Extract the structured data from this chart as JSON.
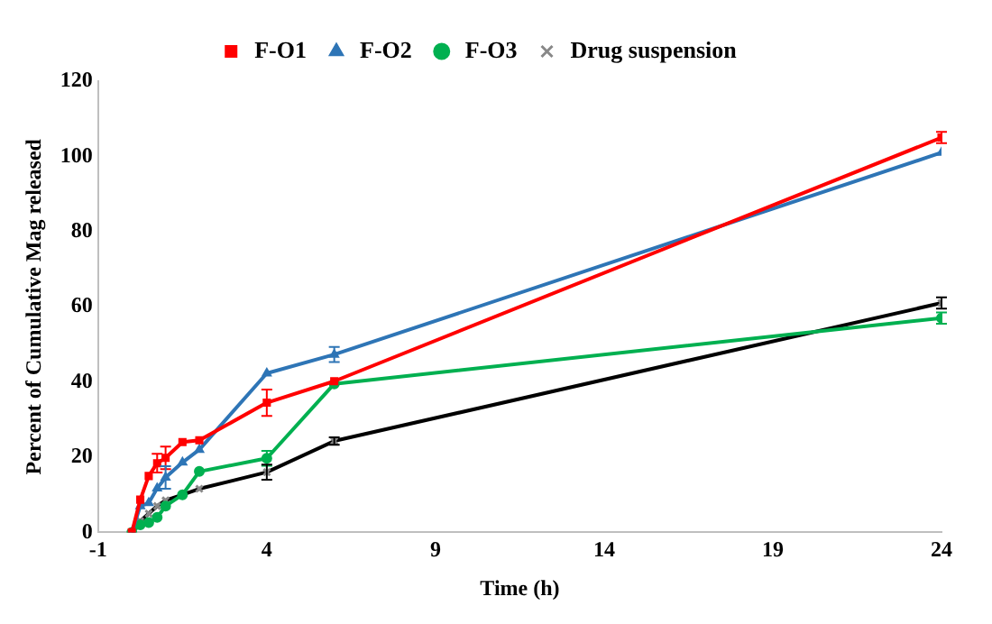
{
  "chart_data": {
    "type": "line",
    "xlabel": "Time (h)",
    "ylabel": "Percent of Cumulative Mag released",
    "x": [
      0,
      0.25,
      0.5,
      0.75,
      1,
      1.5,
      2,
      4,
      6,
      24
    ],
    "xlim": [
      -1,
      24
    ],
    "xticks": [
      -1,
      4,
      9,
      14,
      19,
      24
    ],
    "ylim": [
      0,
      120
    ],
    "yticks": [
      0,
      20,
      40,
      60,
      80,
      100,
      120
    ],
    "grid": false,
    "legend": "top",
    "line_style": "solid",
    "series": [
      {
        "name": "F-O1",
        "color": "#ff0000",
        "marker": "square",
        "values": [
          0,
          8.7,
          15,
          18.4,
          19.8,
          24,
          24.5,
          34.5,
          40.2,
          105
        ],
        "errors": [
          null,
          null,
          null,
          2.5,
          3,
          null,
          null,
          3.5,
          null,
          1.5
        ]
      },
      {
        "name": "F-O2",
        "color": "#2e75b6",
        "marker": "triangle",
        "values": [
          0,
          7,
          7.8,
          11.7,
          14.6,
          18.6,
          22,
          42.3,
          47.3,
          101
        ],
        "errors": [
          null,
          null,
          null,
          null,
          3,
          null,
          null,
          null,
          2,
          null
        ]
      },
      {
        "name": "F-O3",
        "color": "#00b050",
        "marker": "circle",
        "values": [
          0,
          2,
          2.6,
          4,
          7,
          10,
          16.2,
          19.7,
          39.5,
          57
        ],
        "errors": [
          null,
          null,
          null,
          null,
          null,
          null,
          null,
          2,
          null,
          1.5
        ]
      },
      {
        "name": "Drug suspension",
        "color": "#000000",
        "marker": "cross",
        "values": [
          0,
          3,
          5,
          7,
          8.5,
          10,
          11.6,
          16,
          24.3,
          61
        ],
        "errors": [
          null,
          null,
          null,
          null,
          null,
          null,
          null,
          2,
          1,
          1.5
        ]
      }
    ]
  }
}
